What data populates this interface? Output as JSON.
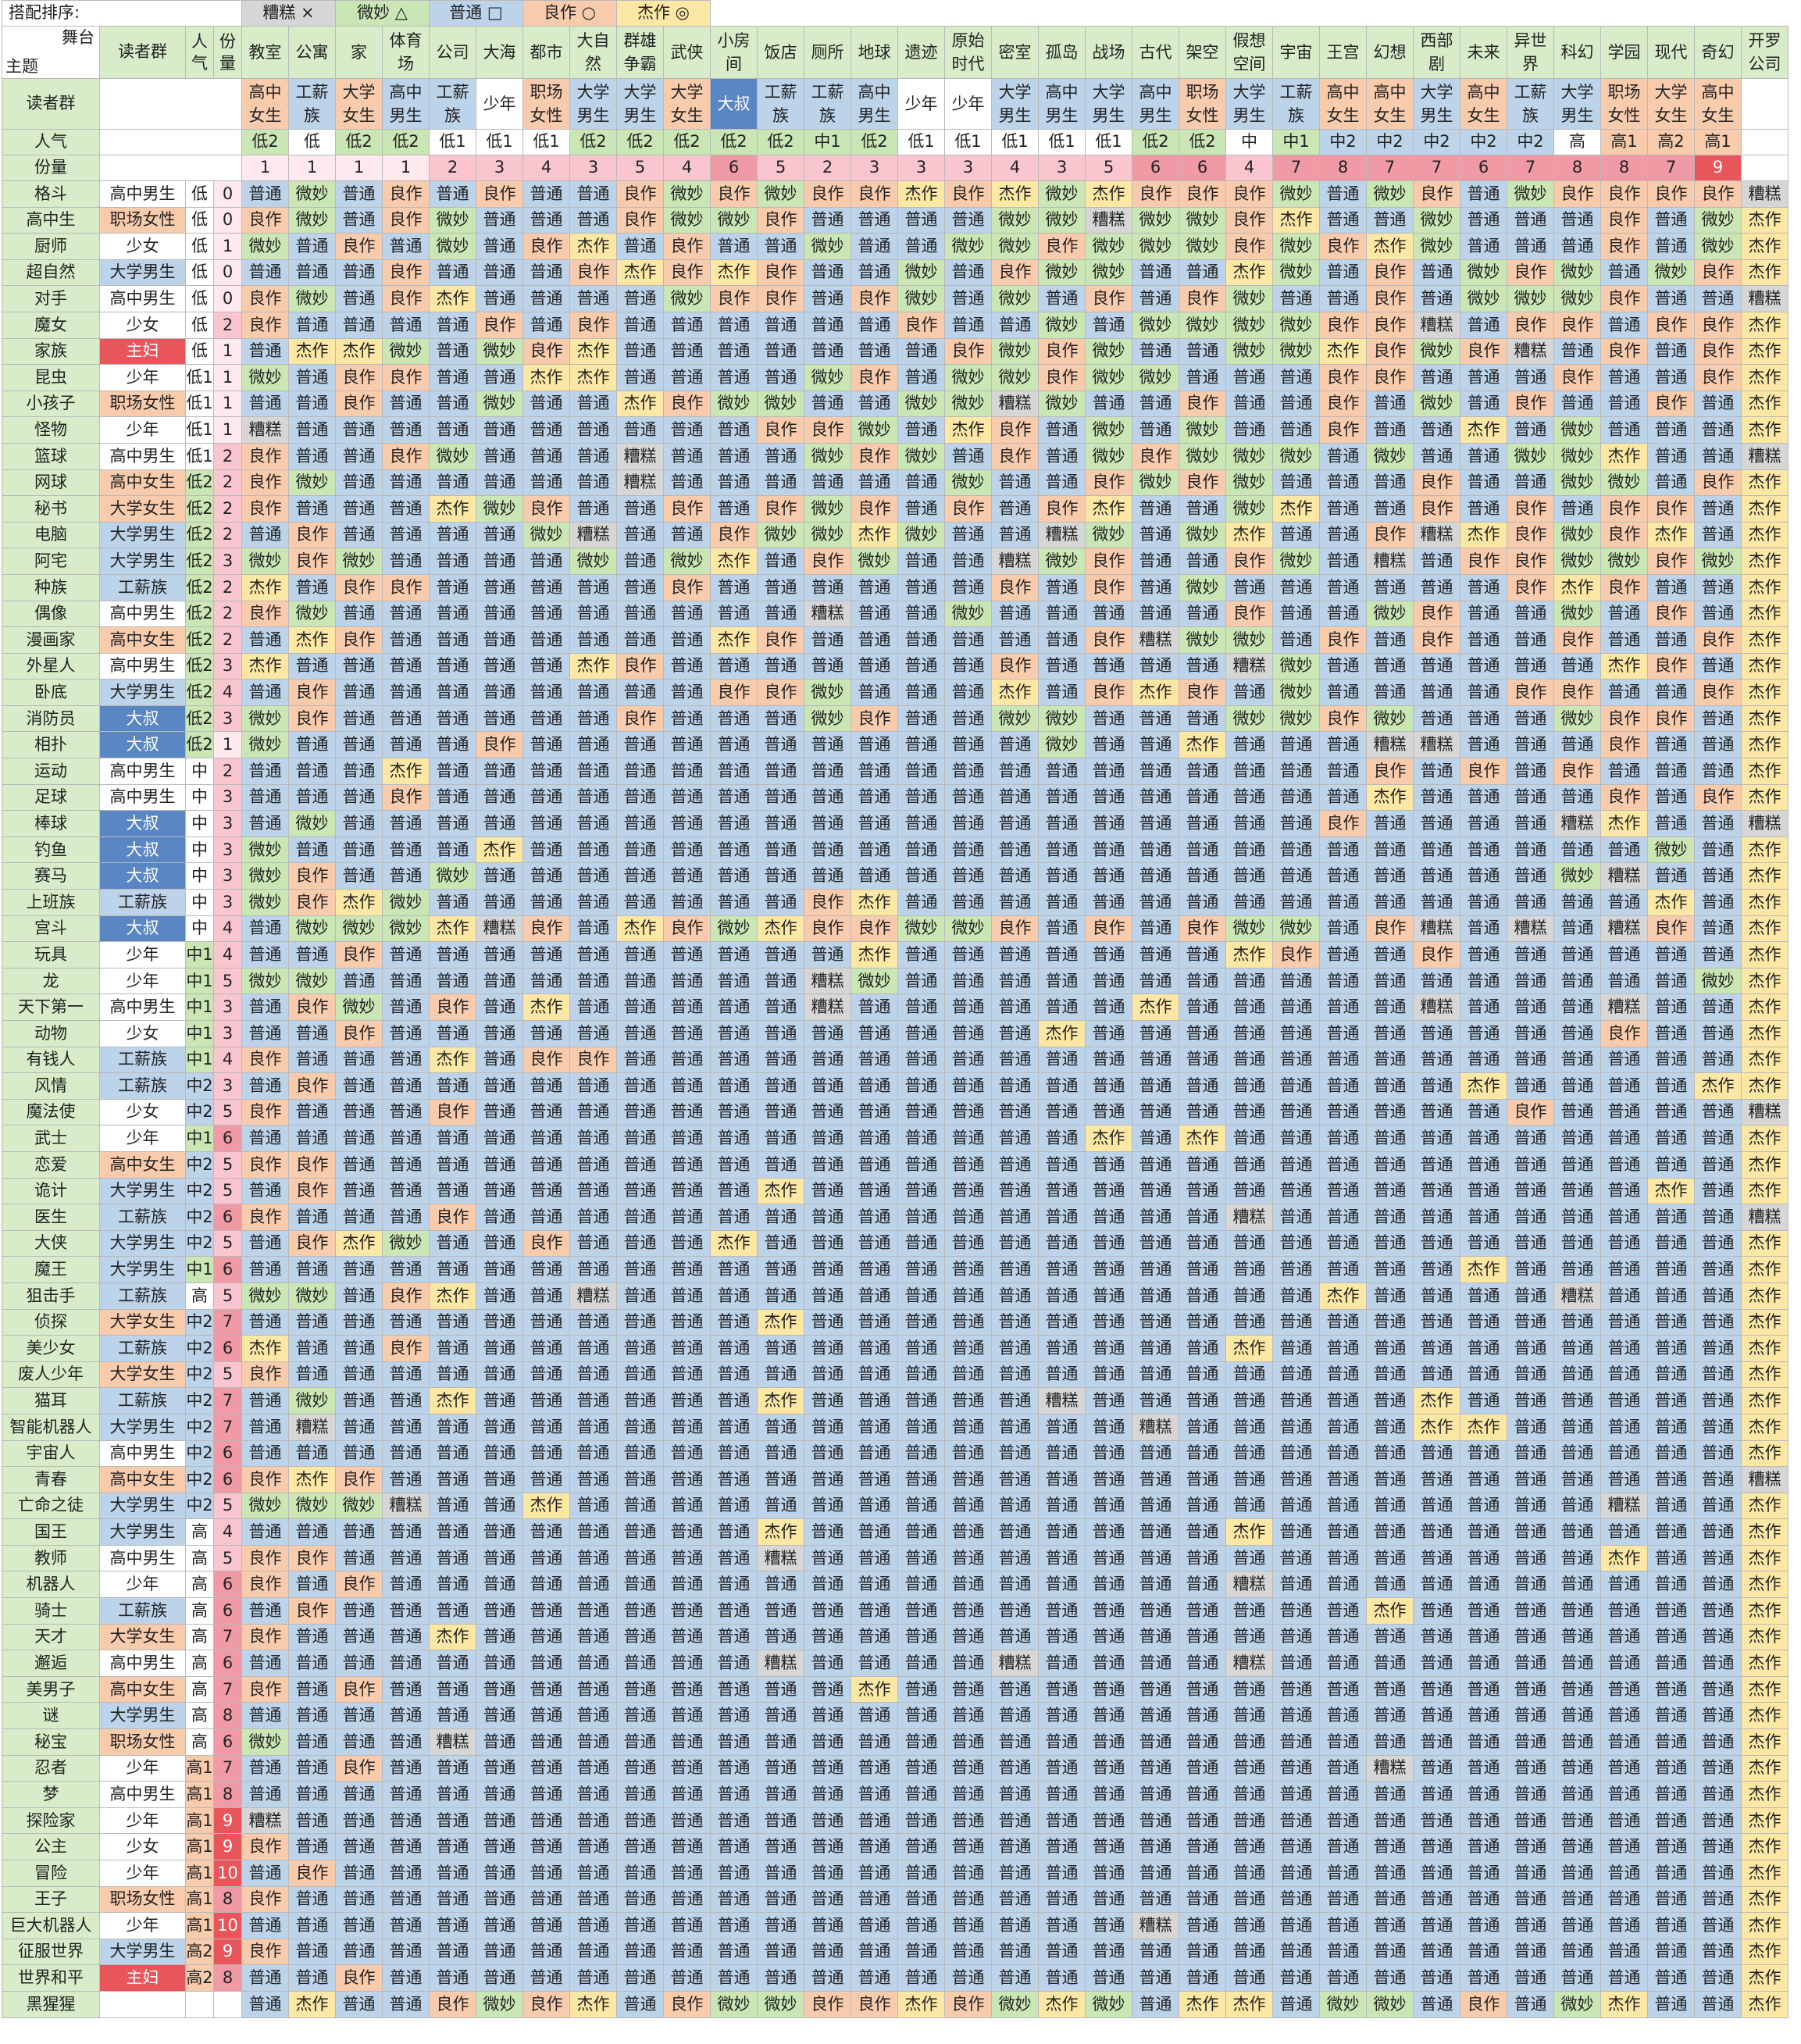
{
  "legend": {
    "sort_label": "搭配排序:",
    "items": [
      {
        "label": "糟糕 ×",
        "key": "x"
      },
      {
        "label": "微妙 △",
        "key": "d"
      },
      {
        "label": "普通 □",
        "key": "n"
      },
      {
        "label": "良作 ○",
        "key": "g"
      },
      {
        "label": "杰作 ◎",
        "key": "j"
      }
    ]
  },
  "header": {
    "corner_top": "舞台",
    "corner_bottom": "主题",
    "audience_label": "读者群",
    "popularity_label": "人气",
    "share_label": "份量",
    "stage_audience_label": "读者群",
    "stage_popularity_label": "人气",
    "stage_share_label": "份量"
  },
  "stages": [
    {
      "name": "教室",
      "aud": "高中女生",
      "pop": "低2",
      "share": "1"
    },
    {
      "name": "公寓",
      "aud": "工薪族",
      "pop": "低",
      "share": "1"
    },
    {
      "name": "家",
      "aud": "大学女生",
      "pop": "低2",
      "share": "1"
    },
    {
      "name": "体育场",
      "aud": "高中男生",
      "pop": "低2",
      "share": "1"
    },
    {
      "name": "公司",
      "aud": "工薪族",
      "pop": "低1",
      "share": "2"
    },
    {
      "name": "大海",
      "aud": "少年",
      "pop": "低1",
      "share": "3"
    },
    {
      "name": "都市",
      "aud": "职场女性",
      "pop": "低1",
      "share": "4"
    },
    {
      "name": "大自然",
      "aud": "大学男生",
      "pop": "低2",
      "share": "3"
    },
    {
      "name": "群雄争霸",
      "aud": "大学男生",
      "pop": "低2",
      "share": "5"
    },
    {
      "name": "武侠",
      "aud": "大学女生",
      "pop": "低2",
      "share": "4"
    },
    {
      "name": "小房间",
      "aud": "大叔",
      "pop": "低2",
      "share": "6"
    },
    {
      "name": "饭店",
      "aud": "工薪族",
      "pop": "低2",
      "share": "5"
    },
    {
      "name": "厕所",
      "aud": "工薪族",
      "pop": "中1",
      "share": "2"
    },
    {
      "name": "地球",
      "aud": "高中男生",
      "pop": "低2",
      "share": "3"
    },
    {
      "name": "遗迹",
      "aud": "少年",
      "pop": "低1",
      "share": "3"
    },
    {
      "name": "原始时代",
      "aud": "少年",
      "pop": "低1",
      "share": "3"
    },
    {
      "name": "密室",
      "aud": "大学男生",
      "pop": "低1",
      "share": "4"
    },
    {
      "name": "孤岛",
      "aud": "高中男生",
      "pop": "低1",
      "share": "3"
    },
    {
      "name": "战场",
      "aud": "大学男生",
      "pop": "低1",
      "share": "5"
    },
    {
      "name": "古代",
      "aud": "高中男生",
      "pop": "低2",
      "share": "6"
    },
    {
      "name": "架空",
      "aud": "职场女性",
      "pop": "低2",
      "share": "6"
    },
    {
      "name": "假想空间",
      "aud": "大学男生",
      "pop": "中",
      "share": "4"
    },
    {
      "name": "宇宙",
      "aud": "工薪族",
      "pop": "中1",
      "share": "7"
    },
    {
      "name": "王宫",
      "aud": "高中女生",
      "pop": "中2",
      "share": "8"
    },
    {
      "name": "幻想",
      "aud": "高中女生",
      "pop": "中2",
      "share": "7"
    },
    {
      "name": "西部剧",
      "aud": "大学男生",
      "pop": "中2",
      "share": "7"
    },
    {
      "name": "未来",
      "aud": "高中女生",
      "pop": "中2",
      "share": "6"
    },
    {
      "name": "异世界",
      "aud": "工薪族",
      "pop": "中2",
      "share": "7"
    },
    {
      "name": "科幻",
      "aud": "大学男生",
      "pop": "高",
      "share": "8"
    },
    {
      "name": "学园",
      "aud": "职场女性",
      "pop": "高1",
      "share": "8"
    },
    {
      "name": "现代",
      "aud": "大学女生",
      "pop": "高2",
      "share": "7"
    },
    {
      "name": "奇幻",
      "aud": "高中女生",
      "pop": "高1",
      "share": "9"
    },
    {
      "name": "开罗公司",
      "aud": "",
      "pop": "",
      "share": ""
    }
  ],
  "themes": [
    {
      "name": "格斗",
      "aud": "高中男生",
      "pop": "低",
      "share": "0",
      "cells": "n d n g n g n n g d g d g g j g j d j g g g d n d g n d g g g g x"
    },
    {
      "name": "高中生",
      "aud": "职场女性",
      "pop": "低",
      "share": "0",
      "cells": "g d n g d n n n g d d g n n n n d d x d d g j n n d n n n g n d j"
    },
    {
      "name": "厨师",
      "aud": "少女",
      "pop": "低",
      "share": "1",
      "cells": "d n g n d n g j n g n n d n n d d g d d d g d g j d n n n g n d j"
    },
    {
      "name": "超自然",
      "aud": "大学男生",
      "pop": "低",
      "share": "0",
      "cells": "n n n g n n n g j g j g n n d n g d d n n j d n g n d g d n d g j"
    },
    {
      "name": "对手",
      "aud": "高中男生",
      "pop": "低",
      "share": "0",
      "cells": "g d n g j n n n n d g g n g d n d n g n g d n n g n d d d g n n x"
    },
    {
      "name": "魔女",
      "aud": "少女",
      "pop": "低",
      "share": "2",
      "cells": "g n n n n g n g n n n n n n g n n d n d d d d g g x n g g n g g j"
    },
    {
      "name": "家族",
      "aud": "主妇",
      "pop": "低",
      "share": "1",
      "cells": "n j j d n d g j n n n n n n n g d g d n n d d j g d g x n g n g j"
    },
    {
      "name": "昆虫",
      "aud": "少年",
      "pop": "低1",
      "share": "1",
      "cells": "d n g g n n j j n n n n d g n d d g d d n n n g g n n n g n n g j"
    },
    {
      "name": "小孩子",
      "aud": "职场女性",
      "pop": "低1",
      "share": "1",
      "cells": "n n g n n d n n j g d d n n d d x d n n g n n g n d n g n n g n j"
    },
    {
      "name": "怪物",
      "aud": "少年",
      "pop": "低1",
      "share": "1",
      "cells": "x n n n n n n n n n n g g d n j g n d n d n n g n n j n d n n n j"
    },
    {
      "name": "篮球",
      "aud": "高中男生",
      "pop": "低1",
      "share": "2",
      "cells": "g n n g d n n n x n n n d g d n g n d g d d d n d n n d d j n n x"
    },
    {
      "name": "网球",
      "aud": "高中女生",
      "pop": "低2",
      "share": "2",
      "cells": "g d n n n n n n x n n n n n n d n n g d g d n n n g n n d d n g j"
    },
    {
      "name": "秘书",
      "aud": "大学女生",
      "pop": "低2",
      "share": "2",
      "cells": "g n n n j d g n n g n g d g n g n g j n n d j n n g n g n g g n j"
    },
    {
      "name": "电脑",
      "aud": "大学男生",
      "pop": "低2",
      "share": "2",
      "cells": "n g n n n n d x n n g d d j d n n x d n d j n n g x j g d g j n j"
    },
    {
      "name": "阿宅",
      "aud": "大学男生",
      "pop": "低2",
      "share": "3",
      "cells": "d g d n n n n d n d j n g d n n x d g n n g d n x n g g d d g d j"
    },
    {
      "name": "种族",
      "aud": "工薪族",
      "pop": "低2",
      "share": "2",
      "cells": "j n g g n n n n n g n n n n n n g n g n d n n n n n n g j g n n j"
    },
    {
      "name": "偶像",
      "aud": "高中男生",
      "pop": "低2",
      "share": "2",
      "cells": "g d n n n n n n n n n n x n n d n n n n n g n n d g n n d n g n j"
    },
    {
      "name": "漫画家",
      "aud": "高中女生",
      "pop": "低2",
      "share": "2",
      "cells": "n j g n n n n n n n j g n n n n n n g x d d n g n g n n g n n g j"
    },
    {
      "name": "外星人",
      "aud": "高中男生",
      "pop": "低2",
      "share": "3",
      "cells": "j n n n n n n j g n n n n n n n g n n n n x d n n n n n n j g n j"
    },
    {
      "name": "卧底",
      "aud": "大学男生",
      "pop": "低2",
      "share": "4",
      "cells": "n g n n n n n n n n g g d n n n j n g j g n d n n n n g g n n g j"
    },
    {
      "name": "消防员",
      "aud": "大叔",
      "pop": "低2",
      "share": "3",
      "cells": "d g n n n n n n g n n n d g n n d d n n n d d g d n n n d g g n j"
    },
    {
      "name": "相扑",
      "aud": "大叔",
      "pop": "低2",
      "share": "1",
      "cells": "d n n n n g n n n n n n n n n n n d n n j n n n x x n n n g n n j"
    },
    {
      "name": "运动",
      "aud": "高中男生",
      "pop": "中",
      "share": "2",
      "cells": "n n n j n n n n n n n n n n n n n n n n n n n n g n g n g n n n j"
    },
    {
      "name": "足球",
      "aud": "高中男生",
      "pop": "中",
      "share": "3",
      "cells": "n n n g n n n n n n n n n n n n n n n n n n n n j n n n n g n g j"
    },
    {
      "name": "棒球",
      "aud": "大叔",
      "pop": "中",
      "share": "3",
      "cells": "n d n n n n n n n n n n n n n n n n n n n n n g n n n n x j n n x"
    },
    {
      "name": "钓鱼",
      "aud": "大叔",
      "pop": "中",
      "share": "3",
      "cells": "d n n n n j n n n n n n n n n n n n n n n n n n n n n n n n d n j"
    },
    {
      "name": "赛马",
      "aud": "大叔",
      "pop": "中",
      "share": "3",
      "cells": "d g n n d n n n n n n n n n n n n n n n n n n n n n n n d x n n j"
    },
    {
      "name": "上班族",
      "aud": "工薪族",
      "pop": "中",
      "share": "3",
      "cells": "d g j d n n n n n n n n g j n n n n n n n n n n n n n n n n j n j"
    },
    {
      "name": "宫斗",
      "aud": "大叔",
      "pop": "中",
      "share": "4",
      "cells": "n d d d j x g n j g d j g g d d g n g n g d d n g x n x n x g n j"
    },
    {
      "name": "玩具",
      "aud": "少年",
      "pop": "中1",
      "share": "4",
      "cells": "n n g n n n n n n n n n n j n n n n n n n j g n n g n n n n n n j"
    },
    {
      "name": "龙",
      "aud": "少年",
      "pop": "中1",
      "share": "5",
      "cells": "d d n n n n n n n n n n x d n n n n n n n n n n n n n n n n n d j"
    },
    {
      "name": "天下第一",
      "aud": "高中男生",
      "pop": "中1",
      "share": "3",
      "cells": "n g d n g n j n n n n n x n n n n n n j n n n n n x n n n x n n j"
    },
    {
      "name": "动物",
      "aud": "少女",
      "pop": "中1",
      "share": "3",
      "cells": "n n g n n n n n n n n n n n n n n j n n n n n n n n n n n g n n j"
    },
    {
      "name": "有钱人",
      "aud": "工薪族",
      "pop": "中1",
      "share": "4",
      "cells": "g n n n j n g g n n n n n n n n n n n n n n n n n n n n n n n n j"
    },
    {
      "name": "风情",
      "aud": "工薪族",
      "pop": "中2",
      "share": "3",
      "cells": "n g n n n n n n n n n n n n n n n n n n n n n n n n j n n n n j j"
    },
    {
      "name": "魔法使",
      "aud": "少女",
      "pop": "中2",
      "share": "5",
      "cells": "g n n n g n n n n n n n n n n n n n n n n n n n n n n g n n n n x"
    },
    {
      "name": "武士",
      "aud": "少年",
      "pop": "中1",
      "share": "6",
      "cells": "n n n n n n n n n n n n n n n n n n j n j n n n n n n n n n n n j"
    },
    {
      "name": "恋爱",
      "aud": "高中女生",
      "pop": "中2",
      "share": "5",
      "cells": "g g n n n n n n n n n n n n n n n n n n n n n n n n n n n n n n j"
    },
    {
      "name": "诡计",
      "aud": "大学男生",
      "pop": "中2",
      "share": "5",
      "cells": "n g n n n n n n n n n j n n n n n n n n n n n n n n n n n n j n j"
    },
    {
      "name": "医生",
      "aud": "工薪族",
      "pop": "中2",
      "share": "6",
      "cells": "g n n n g n n n n n n n n n n n n n n n n x n n n n n n n n n n x"
    },
    {
      "name": "大侠",
      "aud": "大学男生",
      "pop": "中2",
      "share": "5",
      "cells": "n g j d n n g n n n j n n n n n n n n n n n n n n n n n n n n n j"
    },
    {
      "name": "魔王",
      "aud": "大学男生",
      "pop": "中1",
      "share": "6",
      "cells": "n n n n n n n n n n n n n n n n n n n n n n n n n n j n n n n n j"
    },
    {
      "name": "狙击手",
      "aud": "工薪族",
      "pop": "高",
      "share": "5",
      "cells": "d d n g j n n x n n n n n n n n n n n n n n n j n n n n x n n n j"
    },
    {
      "name": "侦探",
      "aud": "大学女生",
      "pop": "中2",
      "share": "7",
      "cells": "n n n n n n n n n n n j n n n n n n n n n n n n n n n n n n n n j"
    },
    {
      "name": "美少女",
      "aud": "工薪族",
      "pop": "中2",
      "share": "6",
      "cells": "j n n g n n n n n n n n n n n n n n n n n j n n n n n n n n n n j"
    },
    {
      "name": "废人少年",
      "aud": "大学女生",
      "pop": "中2",
      "share": "5",
      "cells": "g n n n n n n n n n n n n n n n n n n n n n n n n n n n n n n n j"
    },
    {
      "name": "猫耳",
      "aud": "工薪族",
      "pop": "中2",
      "share": "7",
      "cells": "n d n n j n n n n n n j n n n n n x n n n n n n n j n n n n n n j"
    },
    {
      "name": "智能机器人",
      "aud": "大学男生",
      "pop": "中2",
      "share": "7",
      "cells": "n x n n n n n n n n n n n n n n n n n x n n n n n j j n n n n n j"
    },
    {
      "name": "宇宙人",
      "aud": "高中男生",
      "pop": "中2",
      "share": "6",
      "cells": "n n n n n n n n n n n n n n n n n n n n n n n n n n n n n n n n j"
    },
    {
      "name": "青春",
      "aud": "高中女生",
      "pop": "中2",
      "share": "6",
      "cells": "g j g n n n n n n n n n n n n n n n n n n n n n n n n n n n n n x"
    },
    {
      "name": "亡命之徒",
      "aud": "大学男生",
      "pop": "中2",
      "share": "5",
      "cells": "d d d x n n j n n n n n n n n n n n n n n n n n n n n n n x n n j"
    },
    {
      "name": "国王",
      "aud": "大学男生",
      "pop": "高",
      "share": "4",
      "cells": "n n n n n n n n n n n j n n n n n n n n n j n n n n n n n n n n j"
    },
    {
      "name": "教师",
      "aud": "高中男生",
      "pop": "高",
      "share": "5",
      "cells": "g g n n n n n n n n n x n n n n n n n n n n n n n n n n n j n n j"
    },
    {
      "name": "机器人",
      "aud": "少年",
      "pop": "高",
      "share": "6",
      "cells": "g n g n n n n n n n n n n n n n n n n n n x n n n n n n n n n n j"
    },
    {
      "name": "骑士",
      "aud": "工薪族",
      "pop": "高",
      "share": "6",
      "cells": "n g n n n n n n n n n n n n n n n n n n n n n n j n n n n n n n j"
    },
    {
      "name": "天才",
      "aud": "大学女生",
      "pop": "高",
      "share": "7",
      "cells": "g n n n j n n n n n n n n n n n n n n n n n n n n n n n n n n n j"
    },
    {
      "name": "邂逅",
      "aud": "高中男生",
      "pop": "高",
      "share": "6",
      "cells": "n n n n n n n n n n n x n n n n x n n n n x n n n n n n n n n n j"
    },
    {
      "name": "美男子",
      "aud": "高中女生",
      "pop": "高",
      "share": "7",
      "cells": "g n g n n n n n n n n n n j n n n n n n n n n n n n n n n n n n j"
    },
    {
      "name": "谜",
      "aud": "大学男生",
      "pop": "高",
      "share": "8",
      "cells": "n n n n n n n n n n n n n n n n n n n n n n n n n n n n n n n n j"
    },
    {
      "name": "秘宝",
      "aud": "职场女性",
      "pop": "高",
      "share": "6",
      "cells": "d n n n x n n n n n n n n n n n n n n n n n n n n n n n n n n n j"
    },
    {
      "name": "忍者",
      "aud": "少年",
      "pop": "高1",
      "share": "7",
      "cells": "n n g n n n n n n n n n n n n n n n n n n n n n x n n n n n n n j"
    },
    {
      "name": "梦",
      "aud": "高中男生",
      "pop": "高1",
      "share": "8",
      "cells": "n n n n n n n n n n n n n n n n n n n n n n n n n n n n n n n n j"
    },
    {
      "name": "探险家",
      "aud": "少年",
      "pop": "高1",
      "share": "9",
      "cells": "x n n n n n n n n n n n n n n n n n n n n n n n n n n n n n n n j"
    },
    {
      "name": "公主",
      "aud": "少女",
      "pop": "高1",
      "share": "9",
      "cells": "g n n n n n n n n n n n n n n n n n n n n n n n n n n n n n n n j"
    },
    {
      "name": "冒险",
      "aud": "少年",
      "pop": "高1",
      "share": "10",
      "cells": "n g n n n n n n n n n n n n n n n n n n n n n n n n n n n n n n j"
    },
    {
      "name": "王子",
      "aud": "职场女性",
      "pop": "高1",
      "share": "8",
      "cells": "g n n n n n n n n n n n n n n n n n n n n n n n n n n n n n n n j"
    },
    {
      "name": "巨大机器人",
      "aud": "少年",
      "pop": "高1",
      "share": "10",
      "cells": "n n n n n n n n n n n n n n n n n n n x n n n n n n n n n n n n j"
    },
    {
      "name": "征服世界",
      "aud": "大学男生",
      "pop": "高2",
      "share": "9",
      "cells": "g n n n n n n n n n n n n n n n n n n n n n n n n n n n n n n n j"
    },
    {
      "name": "世界和平",
      "aud": "主妇",
      "pop": "高2",
      "share": "8",
      "cells": "n n g n n n n n n n n n n n n n n n n n n n n n n n n n n n n n j"
    },
    {
      "name": "黑猩猩",
      "aud": "",
      "pop": "",
      "share": "",
      "cells": "n j n n g d g j n g d d g g j g d j d n j j n d d n g n d j n n j"
    }
  ],
  "cell_labels": {
    "x": "糟糕",
    "d": "微妙",
    "n": "普通",
    "g": "良作",
    "j": "杰作"
  }
}
